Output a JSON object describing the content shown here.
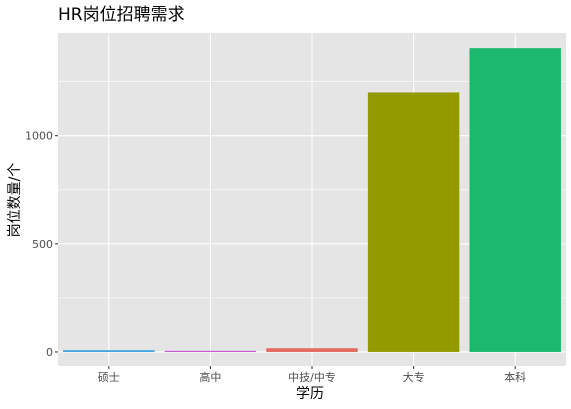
{
  "chart_data": {
    "type": "bar",
    "title": "HR岗位招聘需求",
    "xlabel": "学历",
    "ylabel": "岗位数量/个",
    "categories": [
      "硕士",
      "高中",
      "中技/中专",
      "大专",
      "本科"
    ],
    "values": [
      8,
      5,
      17,
      1200,
      1405
    ],
    "colors": [
      "#3aa0dc",
      "#c64fd6",
      "#e5685f",
      "#939a00",
      "#1bb86e"
    ],
    "yticks": [
      0,
      500,
      1000
    ],
    "ylim": [
      -65,
      1475
    ],
    "grid": true,
    "legend": "none",
    "panel_background": "#e5e5e5",
    "grid_color": "#ffffff"
  }
}
